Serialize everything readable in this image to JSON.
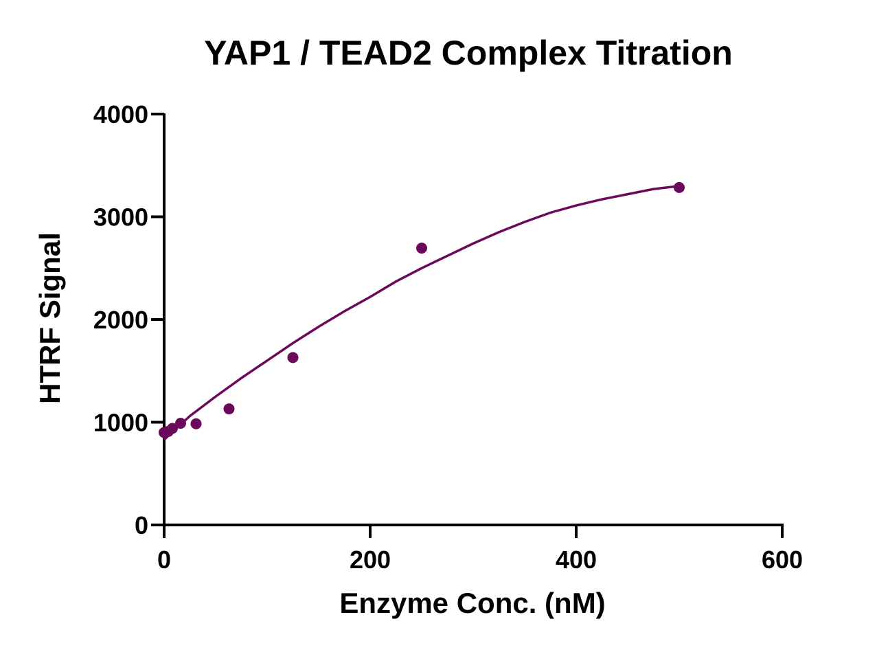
{
  "chart_data": {
    "type": "scatter",
    "title": "YAP1 / TEAD2 Complex Titration",
    "xlabel": "Enzyme Conc. (nM)",
    "ylabel": "HTRF Signal",
    "xlim": [
      0,
      600
    ],
    "ylim": [
      0,
      4000
    ],
    "xticks": [
      0,
      200,
      400,
      600
    ],
    "xtick_labels": [
      "0",
      "200",
      "400",
      "600"
    ],
    "yticks": [
      0,
      1000,
      2000,
      3000,
      4000
    ],
    "ytick_labels": [
      "0",
      "1000",
      "2000",
      "3000",
      "4000"
    ],
    "grid": false,
    "series": [
      {
        "color": "#6b0a5b",
        "points": [
          {
            "x": 0,
            "y": 900
          },
          {
            "x": 2,
            "y": 905
          },
          {
            "x": 4,
            "y": 910
          },
          {
            "x": 8,
            "y": 940
          },
          {
            "x": 16,
            "y": 990
          },
          {
            "x": 31,
            "y": 985
          },
          {
            "x": 63,
            "y": 1130
          },
          {
            "x": 125,
            "y": 1630
          },
          {
            "x": 250,
            "y": 2695
          },
          {
            "x": 500,
            "y": 3285
          }
        ],
        "fit_curve": {
          "x": [
            0,
            25,
            50,
            75,
            100,
            125,
            150,
            175,
            200,
            225,
            250,
            275,
            300,
            325,
            350,
            375,
            400,
            425,
            450,
            475,
            500
          ],
          "y": [
            830,
            1060,
            1250,
            1430,
            1600,
            1770,
            1930,
            2080,
            2220,
            2370,
            2500,
            2620,
            2740,
            2850,
            2950,
            3040,
            3110,
            3170,
            3220,
            3270,
            3300
          ]
        }
      }
    ]
  }
}
